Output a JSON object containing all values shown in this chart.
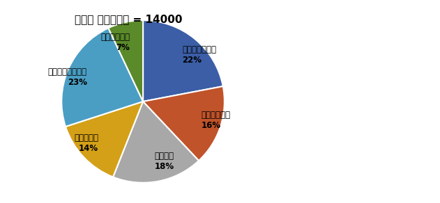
{
  "title": "कुल दर्शक = 14000",
  "slices": [
    {
      "label": "क्रिकेट\n22%",
      "value": 22,
      "color": "#3B5EA6"
    },
    {
      "label": "फुटबॉल\n16%",
      "value": 16,
      "color": "#C0532A"
    },
    {
      "label": "हॉकी\n18%",
      "value": 18,
      "color": "#A8A8A8"
    },
    {
      "label": "टेनिस\n14%",
      "value": 14,
      "color": "#D4A017"
    },
    {
      "label": "बैडमिंटन\n23%",
      "value": 23,
      "color": "#4A9EC4"
    },
    {
      "label": "कबड्डी\n7%",
      "value": 7,
      "color": "#5A8A2A"
    }
  ],
  "title_fontsize": 11,
  "label_fontsize": 8.5,
  "startangle": 90
}
